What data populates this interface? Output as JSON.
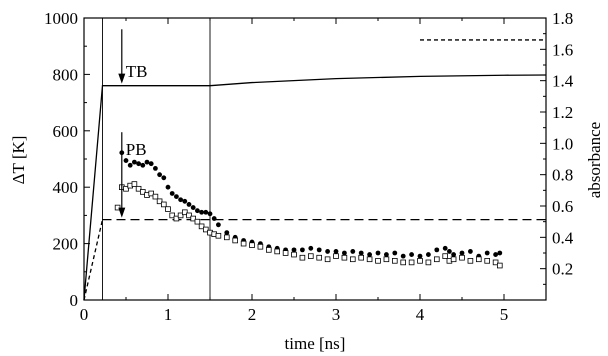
{
  "chart_data": {
    "type": "scatter",
    "xlabel": "time [ns]",
    "ylabel_left": "ΔT [K]",
    "ylabel_right": "absorbance",
    "xlim": [
      0,
      5.5
    ],
    "ylim_left": [
      0,
      1000
    ],
    "ylim_right": [
      0,
      1.8
    ],
    "x_ticks": [
      0,
      1,
      2,
      3,
      4,
      5
    ],
    "y_left_ticks": [
      0,
      200,
      400,
      600,
      800,
      1000
    ],
    "y_right_ticks": [
      0.2,
      0.4,
      0.6,
      0.8,
      1.0,
      1.2,
      1.4,
      1.6,
      1.8
    ],
    "y_right_tick_labels": [
      "0.2",
      "0.4",
      "0.6",
      "0.8",
      "1.0",
      "1.2",
      "1.4",
      "1.6",
      "1.8"
    ],
    "grid": false,
    "vertical_markers": [
      0.22,
      1.5
    ],
    "series": [
      {
        "name": "TB",
        "style": "solid",
        "axis": "left",
        "x": [
          0,
          0.22,
          0.5,
          1.0,
          1.5,
          2.0,
          3.0,
          4.0,
          5.0,
          5.5
        ],
        "y": [
          0,
          760,
          760,
          760,
          760,
          771,
          785,
          793,
          797,
          798
        ]
      },
      {
        "name": "PB",
        "style": "dashed-long",
        "axis": "left",
        "x": [
          0.22,
          5.5
        ],
        "y": [
          285,
          285
        ]
      },
      {
        "name": "",
        "style": "dashed-short",
        "axis": "left",
        "x": [
          0,
          0.22
        ],
        "y": [
          0,
          285
        ]
      },
      {
        "name": "",
        "style": "dashed-short",
        "axis": "right",
        "x": [
          4.0,
          5.5
        ],
        "y": [
          1.66,
          1.66
        ]
      },
      {
        "name": "",
        "marker": "filled-circle",
        "axis": "right",
        "x": [
          0.45,
          0.5,
          0.55,
          0.6,
          0.65,
          0.7,
          0.75,
          0.8,
          0.85,
          0.9,
          0.95,
          1.0,
          1.05,
          1.1,
          1.15,
          1.2,
          1.25,
          1.3,
          1.35,
          1.4,
          1.45,
          1.5,
          1.55,
          1.6,
          1.7,
          1.8,
          1.9,
          2.0,
          2.1,
          2.2,
          2.3,
          2.4,
          2.5,
          2.6,
          2.7,
          2.8,
          2.9,
          3.0,
          3.1,
          3.2,
          3.3,
          3.4,
          3.5,
          3.6,
          3.7,
          3.8,
          3.9,
          4.0,
          4.1,
          4.2,
          4.3,
          4.35,
          4.4,
          4.5,
          4.6,
          4.7,
          4.8,
          4.9,
          4.95
        ],
        "y": [
          0.94,
          0.89,
          0.86,
          0.88,
          0.87,
          0.86,
          0.88,
          0.87,
          0.84,
          0.8,
          0.78,
          0.72,
          0.68,
          0.66,
          0.64,
          0.63,
          0.61,
          0.59,
          0.57,
          0.56,
          0.56,
          0.55,
          0.52,
          0.48,
          0.43,
          0.4,
          0.38,
          0.37,
          0.36,
          0.34,
          0.33,
          0.32,
          0.32,
          0.32,
          0.33,
          0.32,
          0.31,
          0.31,
          0.3,
          0.31,
          0.3,
          0.29,
          0.3,
          0.29,
          0.3,
          0.28,
          0.29,
          0.28,
          0.29,
          0.32,
          0.33,
          0.31,
          0.29,
          0.3,
          0.31,
          0.28,
          0.3,
          0.29,
          0.3
        ]
      },
      {
        "name": "",
        "marker": "open-square",
        "axis": "right",
        "x": [
          0.4,
          0.45,
          0.5,
          0.55,
          0.6,
          0.65,
          0.7,
          0.75,
          0.8,
          0.85,
          0.9,
          0.95,
          1.0,
          1.05,
          1.1,
          1.15,
          1.2,
          1.25,
          1.3,
          1.35,
          1.4,
          1.45,
          1.5,
          1.55,
          1.6,
          1.7,
          1.8,
          1.9,
          2.0,
          2.1,
          2.2,
          2.3,
          2.4,
          2.5,
          2.6,
          2.7,
          2.8,
          2.9,
          3.0,
          3.1,
          3.2,
          3.3,
          3.4,
          3.5,
          3.6,
          3.7,
          3.8,
          3.9,
          4.0,
          4.1,
          4.2,
          4.3,
          4.35,
          4.4,
          4.5,
          4.6,
          4.7,
          4.8,
          4.9,
          4.95
        ],
        "y": [
          0.59,
          0.72,
          0.71,
          0.73,
          0.74,
          0.71,
          0.69,
          0.67,
          0.68,
          0.66,
          0.63,
          0.61,
          0.58,
          0.54,
          0.52,
          0.54,
          0.56,
          0.54,
          0.52,
          0.5,
          0.47,
          0.45,
          0.43,
          0.42,
          0.41,
          0.4,
          0.38,
          0.36,
          0.35,
          0.34,
          0.32,
          0.31,
          0.3,
          0.29,
          0.27,
          0.28,
          0.27,
          0.26,
          0.28,
          0.27,
          0.26,
          0.27,
          0.26,
          0.25,
          0.26,
          0.25,
          0.24,
          0.24,
          0.25,
          0.24,
          0.26,
          0.28,
          0.25,
          0.26,
          0.27,
          0.25,
          0.26,
          0.25,
          0.24,
          0.22
        ]
      }
    ],
    "annotations": [
      {
        "text": "TB",
        "x": 0.45,
        "y": 790,
        "axis": "left",
        "arrow_to_y": 760
      },
      {
        "text": "PB",
        "x": 0.45,
        "y": 515,
        "axis": "left",
        "arrow_to_y": 285
      }
    ]
  }
}
